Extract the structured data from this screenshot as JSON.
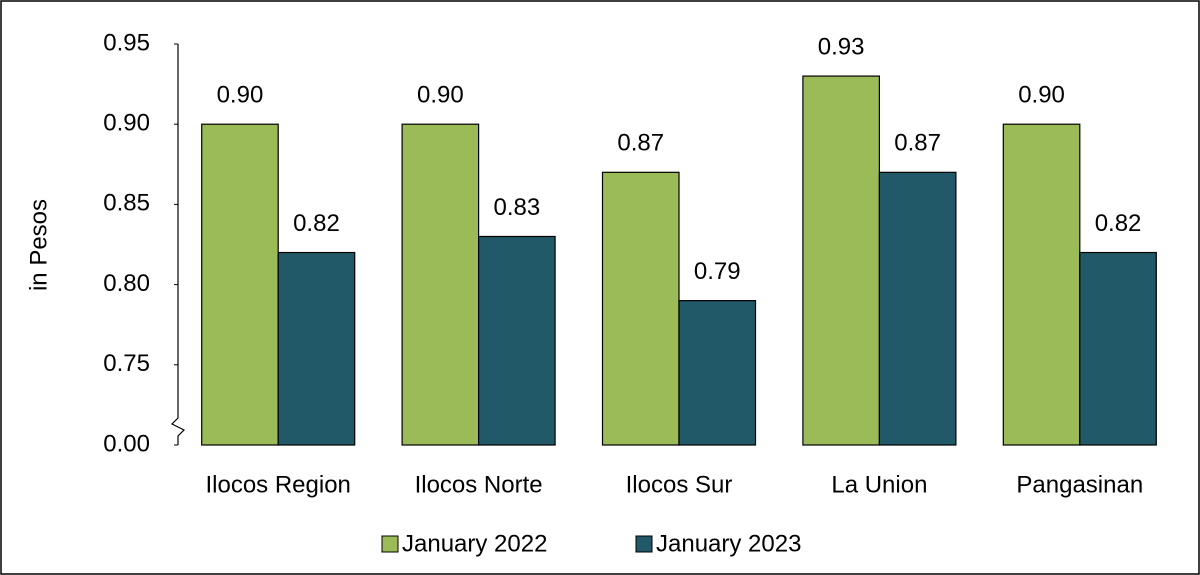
{
  "chart_data": {
    "type": "bar",
    "y_label": "in Pesos",
    "categories": [
      "Ilocos Region",
      "Ilocos Norte",
      "Ilocos Sur",
      "La Union",
      "Pangasinan"
    ],
    "series": [
      {
        "name": "January 2022",
        "color": "#9bbb59",
        "values": [
          0.9,
          0.9,
          0.87,
          0.93,
          0.9
        ],
        "value_labels": [
          "0.90",
          "0.90",
          "0.87",
          "0.93",
          "0.90"
        ]
      },
      {
        "name": "January 2023",
        "color": "#215968",
        "values": [
          0.82,
          0.83,
          0.79,
          0.87,
          0.82
        ]
      }
    ],
    "ylim": [
      0,
      0.95
    ],
    "yticks": [
      {
        "value": 0,
        "label": "0.00"
      },
      0.75,
      {
        "value": 0.8,
        "label": "0.80"
      },
      0.85,
      {
        "value": 0.9,
        "label": "0.90"
      },
      0.95
    ],
    "axis_break": true,
    "grid": false,
    "legend": "bottom"
  }
}
